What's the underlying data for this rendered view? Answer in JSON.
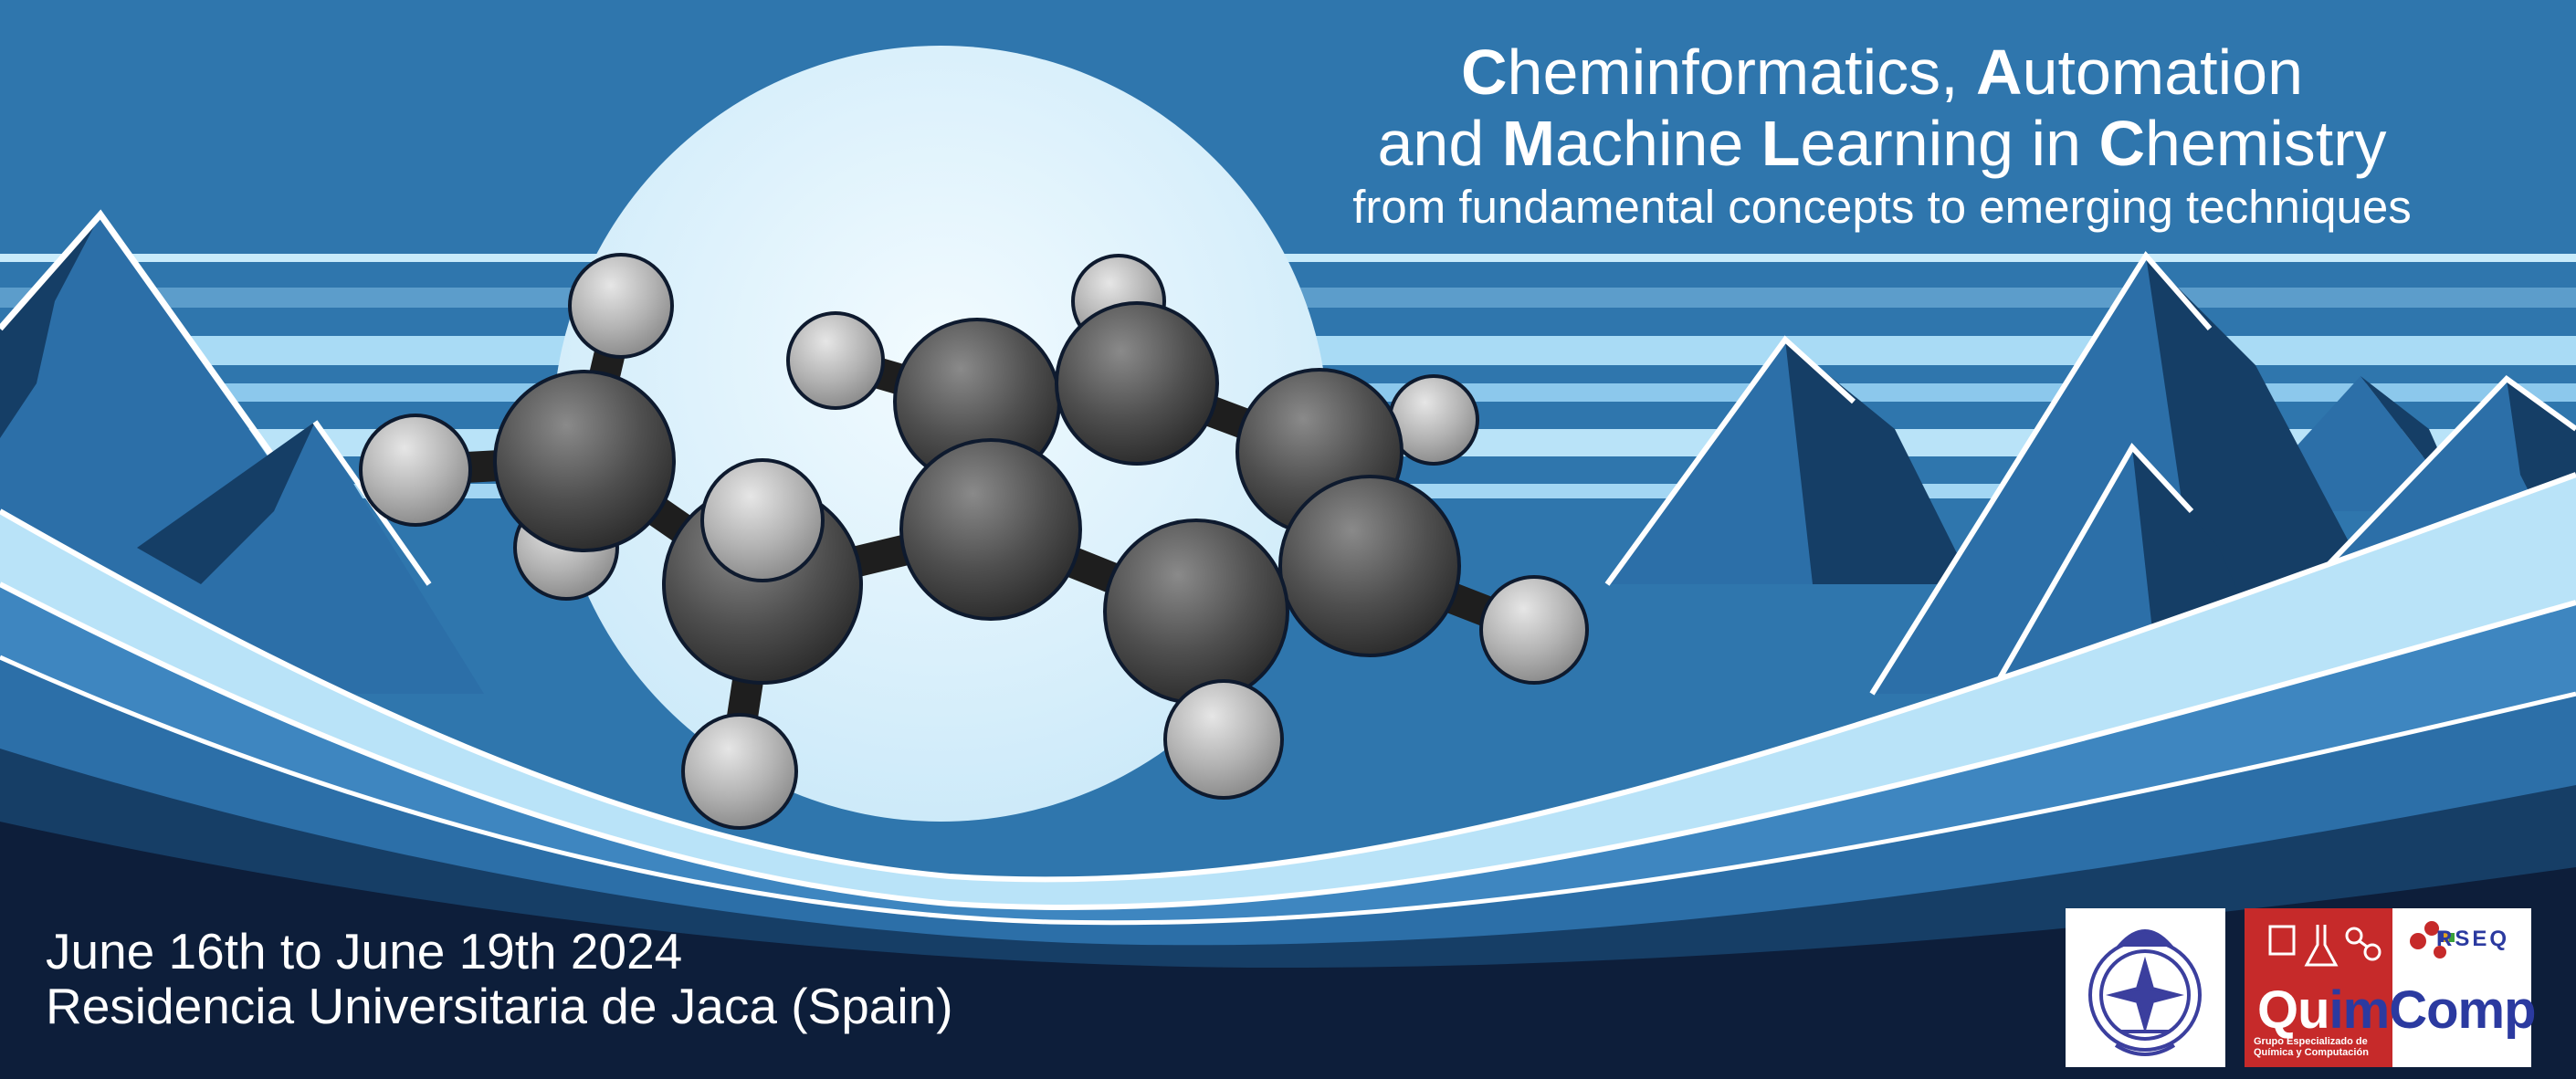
{
  "banner": {
    "title": {
      "line1": [
        {
          "bold": "C",
          "rest": "heminformatics, "
        },
        {
          "bold": "A",
          "rest": "utomation"
        }
      ],
      "line2": [
        {
          "bold": "",
          "rest": "and "
        },
        {
          "bold": "M",
          "rest": "achine "
        },
        {
          "bold": "L",
          "rest": "earning in "
        },
        {
          "bold": "C",
          "rest": "hemistry"
        }
      ],
      "subtitle": "from fundamental concepts to emerging techniques"
    },
    "event": {
      "dates": "June 16th to June 19th 2024",
      "venue": "Residencia Universitaria de Jaca (Spain)"
    },
    "logos": {
      "seal_icon": "university-seal-icon",
      "quimcomp": {
        "qu": "Qu",
        "im": "im",
        "comp": "Comp",
        "tagline": "Grupo Especializado de Química y Computación"
      },
      "rseq": "RSEQ"
    },
    "colors": {
      "sky": "#2f76ad",
      "moon": "#dff3fd",
      "mountain_dark": "#163e66",
      "mountain_mid": "#2c6fa8",
      "ice": "#b9e3f8",
      "ground": "#0d1e3a",
      "atom_carbon": "#5a5a5a",
      "atom_hydrogen": "#b5b5b5",
      "quimcomp_red": "#c62a2a"
    }
  }
}
